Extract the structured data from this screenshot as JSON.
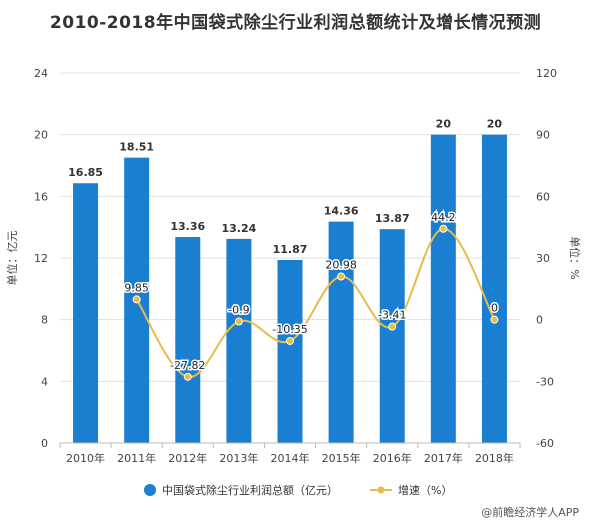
{
  "title": "2010-2018年中国袋式除尘行业利润总额统计及增长情况预测",
  "brand": "@前瞻经济学人APP",
  "colors": {
    "bar": "#1a7fd0",
    "line": "#e8bb4a",
    "grid": "#e0e0e0",
    "text": "#444444"
  },
  "chart_data": {
    "type": "bar",
    "categories": [
      "2010年",
      "2011年",
      "2012年",
      "2013年",
      "2014年",
      "2015年",
      "2016年",
      "2017年",
      "2018年"
    ],
    "series": [
      {
        "name": "中国袋式除尘行业利润总额（亿元）",
        "type": "bar",
        "axis": "left",
        "values": [
          16.85,
          18.51,
          13.36,
          13.24,
          11.87,
          14.36,
          13.87,
          20,
          20
        ],
        "labels": [
          "16.85",
          "18.51",
          "13.36",
          "13.24",
          "11.87",
          "14.36",
          "13.87",
          "20",
          "20"
        ]
      },
      {
        "name": "增速（%）",
        "type": "line",
        "axis": "right",
        "values": [
          null,
          9.85,
          -27.82,
          -0.9,
          -10.35,
          20.98,
          -3.41,
          44.2,
          0
        ],
        "labels": [
          "",
          "9.85",
          "-27.82",
          "-0.9",
          "-10.35",
          "20.98",
          "-3.41",
          "44.2",
          "0"
        ]
      }
    ],
    "ylabel_left": "单位：亿元",
    "ylabel_right": "单位：%",
    "ylim_left": [
      0,
      24
    ],
    "yticks_left": [
      "0",
      "4",
      "8",
      "12",
      "16",
      "20",
      "24"
    ],
    "ylim_right": [
      -60,
      120
    ],
    "yticks_right": [
      "-60",
      "-30",
      "0",
      "30",
      "60",
      "90",
      "120"
    ],
    "grid": true,
    "legend_position": "bottom"
  }
}
